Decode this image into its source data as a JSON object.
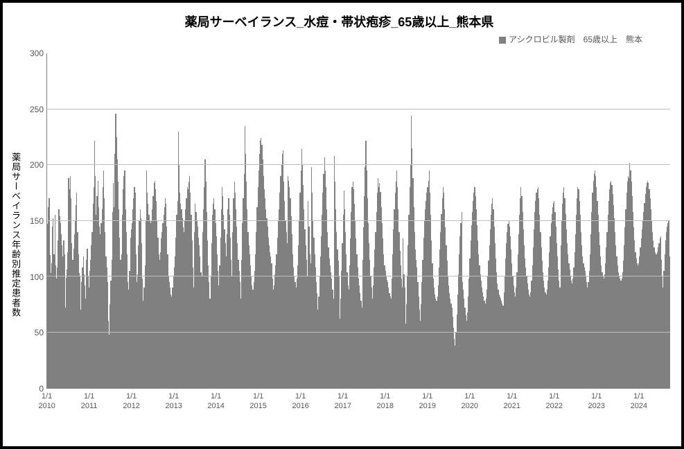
{
  "chart": {
    "type": "bar",
    "title": "薬局サーベイランス_水痘・帯状疱疹_65歳以上_熊本県",
    "title_fontsize": 18,
    "legend_text": "アシクロビル製剤　65歳以上　熊本",
    "y_axis_label": "薬局サーベイランス年齢別推定患者数",
    "background_color": "#ffffff",
    "border_color": "#000000",
    "grid_color": "#bfbfbf",
    "bar_color": "#808080",
    "text_color": "#555555",
    "ylim": [
      0,
      300
    ],
    "ytick_step": 50,
    "yticks": [
      0,
      50,
      100,
      150,
      200,
      250,
      300
    ],
    "x_tick_label_top": "1/1",
    "x_years": [
      2010,
      2011,
      2012,
      2013,
      2014,
      2015,
      2016,
      2017,
      2018,
      2019,
      2020,
      2021,
      2022,
      2023,
      2024
    ],
    "weeks_per_year": 52,
    "total_bars": 772,
    "values": [
      147,
      162,
      170,
      119,
      103,
      112,
      145,
      152,
      120,
      155,
      110,
      98,
      108,
      132,
      160,
      154,
      148,
      138,
      128,
      118,
      132,
      120,
      72,
      99,
      106,
      122,
      188,
      178,
      190,
      170,
      130,
      115,
      125,
      138,
      150,
      164,
      175,
      140,
      120,
      103,
      100,
      70,
      95,
      108,
      118,
      102,
      92,
      80,
      115,
      125,
      100,
      90,
      105,
      115,
      128,
      140,
      165,
      180,
      222,
      190,
      155,
      172,
      186,
      162,
      145,
      138,
      148,
      160,
      180,
      195,
      170,
      140,
      118,
      108,
      95,
      60,
      48,
      75,
      96,
      115,
      158,
      184,
      162,
      210,
      246,
      225,
      205,
      185,
      160,
      135,
      115,
      120,
      155,
      178,
      190,
      195,
      160,
      140,
      120,
      95,
      88,
      105,
      135,
      142,
      148,
      160,
      170,
      180,
      175,
      120,
      95,
      102,
      128,
      150,
      160,
      152,
      130,
      98,
      78,
      90,
      110,
      150,
      195,
      175,
      165,
      155,
      150,
      148,
      150,
      160,
      172,
      184,
      186,
      178,
      168,
      150,
      135,
      120,
      115,
      122,
      134,
      140,
      148,
      155,
      162,
      170,
      165,
      145,
      120,
      100,
      95,
      90,
      84,
      82,
      90,
      100,
      108,
      118,
      135,
      155,
      168,
      230,
      200,
      175,
      165,
      160,
      152,
      144,
      140,
      150,
      160,
      170,
      180,
      178,
      185,
      190,
      175,
      155,
      132,
      108,
      90,
      140,
      165,
      158,
      150,
      145,
      135,
      128,
      118,
      104,
      100,
      140,
      160,
      180,
      205,
      185,
      158,
      132,
      110,
      95,
      80,
      100,
      130,
      155,
      165,
      170,
      160,
      148,
      136,
      120,
      105,
      92,
      110,
      135,
      160,
      180,
      172,
      155,
      142,
      130,
      118,
      138,
      160,
      170,
      155,
      135,
      115,
      100,
      140,
      170,
      185,
      175,
      160,
      145,
      130,
      115,
      105,
      95,
      80,
      115,
      148,
      170,
      192,
      235,
      210,
      185,
      160,
      140,
      128,
      120,
      110,
      100,
      92,
      88,
      95,
      105,
      120,
      140,
      162,
      180,
      195,
      210,
      222,
      224,
      218,
      205,
      190,
      178,
      170,
      160,
      152,
      145,
      135,
      128,
      122,
      118,
      112,
      98,
      88,
      92,
      102,
      110,
      120,
      135,
      150,
      160,
      175,
      190,
      200,
      210,
      213,
      185,
      168,
      150,
      140,
      130,
      190,
      186,
      180,
      170,
      154,
      138,
      120,
      108,
      100,
      95,
      90,
      98,
      110,
      128,
      150,
      175,
      195,
      214,
      200,
      182,
      160,
      142,
      128,
      115,
      100,
      168,
      145,
      120,
      112,
      198,
      175,
      150,
      135,
      120,
      108,
      95,
      85,
      70,
      82,
      100,
      118,
      136,
      155,
      175,
      192,
      207,
      195,
      180,
      160,
      140,
      126,
      116,
      110,
      104,
      98,
      88,
      80,
      208,
      185,
      160,
      140,
      124,
      114,
      100,
      62,
      80,
      105,
      130,
      155,
      177,
      160,
      140,
      120,
      104,
      92,
      88,
      110,
      134,
      158,
      180,
      185,
      178,
      165,
      150,
      134,
      120,
      108,
      98,
      92,
      85,
      78,
      72,
      115,
      144,
      172,
      198,
      222,
      195,
      170,
      148,
      130,
      115,
      100,
      90,
      80,
      92,
      108,
      124,
      140,
      158,
      175,
      188,
      180,
      184,
      176,
      162,
      148,
      134,
      120,
      110,
      105,
      100,
      97,
      95,
      90,
      85,
      82,
      80,
      98,
      120,
      142,
      160,
      175,
      185,
      195,
      180,
      160,
      140,
      123,
      110,
      98,
      90,
      134,
      102,
      90,
      58,
      75,
      100,
      128,
      155,
      180,
      200,
      244,
      215,
      188,
      162,
      140,
      124,
      115,
      108,
      95,
      82,
      70,
      60,
      75,
      95,
      115,
      135,
      150,
      160,
      168,
      175,
      180,
      186,
      195,
      175,
      155,
      132,
      112,
      98,
      90,
      84,
      80,
      78,
      82,
      92,
      108,
      124,
      140,
      156,
      170,
      180,
      175,
      160,
      144,
      128,
      114,
      100,
      92,
      85,
      80,
      76,
      72,
      64,
      54,
      44,
      38,
      50,
      66,
      84,
      102,
      120,
      136,
      148,
      158,
      95,
      88,
      80,
      72,
      65,
      60,
      68,
      82,
      98,
      116,
      132,
      146,
      158,
      168,
      175,
      180,
      172,
      160,
      146,
      132,
      120,
      110,
      102,
      96,
      90,
      86,
      82,
      78,
      76,
      80,
      88,
      100,
      114,
      128,
      142,
      155,
      165,
      170,
      160,
      145,
      130,
      116,
      104,
      94,
      88,
      84,
      82,
      80,
      78,
      76,
      74,
      86,
      100,
      116,
      130,
      140,
      147,
      150,
      145,
      136,
      124,
      112,
      100,
      92,
      86,
      82,
      90,
      104,
      120,
      138,
      155,
      170,
      180,
      172,
      158,
      142,
      128,
      116,
      108,
      100,
      94,
      88,
      84,
      82,
      86,
      96,
      110,
      126,
      142,
      158,
      168,
      175,
      178,
      180,
      170,
      155,
      140,
      126,
      114,
      104,
      96,
      90,
      86,
      84,
      88,
      96,
      108,
      122,
      136,
      148,
      156,
      162,
      166,
      168,
      158,
      145,
      130,
      118,
      106,
      96,
      90,
      128,
      150,
      165,
      175,
      180,
      170,
      156,
      142,
      130,
      120,
      112,
      106,
      100,
      96,
      94,
      98,
      108,
      122,
      138,
      155,
      170,
      180,
      178,
      168,
      155,
      140,
      128,
      118,
      112,
      108,
      105,
      100,
      95,
      90,
      95,
      105,
      120,
      138,
      158,
      175,
      186,
      192,
      195,
      190,
      180,
      168,
      155,
      140,
      128,
      118,
      110,
      104,
      100,
      98,
      102,
      112,
      126,
      140,
      155,
      168,
      178,
      184,
      186,
      182,
      174,
      164,
      152,
      140,
      128,
      118,
      110,
      104,
      100,
      98,
      96,
      98,
      104,
      114,
      128,
      144,
      160,
      175,
      185,
      190,
      188,
      202,
      195,
      185,
      172,
      158,
      144,
      132,
      122,
      116,
      112,
      110,
      112,
      118,
      126,
      134,
      142,
      150,
      158,
      166,
      174,
      180,
      184,
      186,
      184,
      178,
      170,
      160,
      150,
      140,
      132,
      126,
      122,
      120,
      120,
      122,
      126,
      130,
      134,
      136,
      115,
      100,
      90,
      105,
      120,
      132,
      140,
      145,
      148,
      150,
      118
    ]
  }
}
